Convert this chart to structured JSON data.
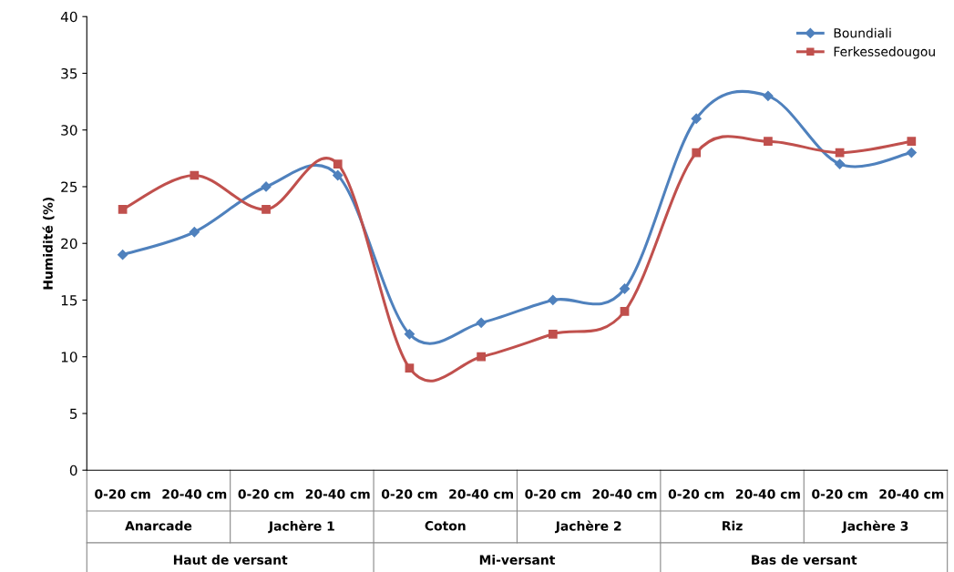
{
  "chart_data": {
    "type": "line",
    "ylabel": "Humidité (%)",
    "categories": [
      "0-20 cm",
      "20-40 cm",
      "0-20 cm",
      "20-40 cm",
      "0-20 cm",
      "20-40 cm",
      "0-20 cm",
      "20-40 cm",
      "0-20 cm",
      "20-40 cm",
      "0-20 cm",
      "20-40 cm"
    ],
    "annotations": [
      "Anarcade",
      "Jachère 1",
      "Coton",
      "Jachère 2",
      "Riz",
      "Jachère 3",
      "Haut de versant",
      "Mi-versant",
      "Bas de versant"
    ],
    "series": [
      {
        "name": "Boundiali",
        "color": "#4f81bd",
        "marker": "diamond",
        "values": [
          19,
          21,
          25,
          26,
          12,
          13,
          15,
          16,
          31,
          33,
          27,
          28
        ]
      },
      {
        "name": "Ferkessedougou",
        "color": "#c0504d",
        "marker": "square",
        "values": [
          23,
          26,
          23,
          27,
          9,
          10,
          12,
          14,
          28,
          29,
          28,
          29
        ]
      }
    ],
    "ylim": [
      0,
      40
    ],
    "yticks": [
      0,
      5,
      10,
      15,
      20,
      25,
      30,
      35,
      40
    ],
    "grid": false,
    "legend": "top right",
    "line_style": "solid"
  }
}
